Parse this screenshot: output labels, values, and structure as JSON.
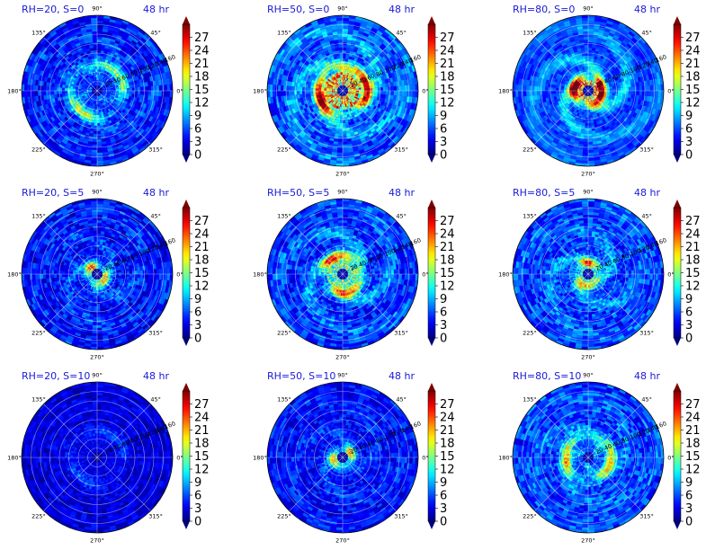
{
  "chart_data": {
    "type": "polar-heatmap-grid",
    "rows": 3,
    "cols": 3,
    "colormap": "jet",
    "vmin": 0,
    "vmax": 30,
    "colorbar_ticks": [
      "0",
      "3",
      "6",
      "9",
      "12",
      "15",
      "18",
      "21",
      "24",
      "27"
    ],
    "angle_labels": [
      "0°",
      "45°",
      "90°",
      "135°",
      "180°",
      "225°",
      "270°",
      "315°"
    ],
    "radial_labels": [
      "20",
      "40",
      "60",
      "80",
      "100",
      "120",
      "140",
      "160"
    ],
    "panels": [
      {
        "title": "RH=20, S=0",
        "time": "48 hr",
        "ring_radius": 0.35,
        "ring_peak": 12,
        "spiral_strength": 0.45,
        "background": 3.5,
        "noise": 6,
        "core_peak": 6
      },
      {
        "title": "RH=50, S=0",
        "time": "48 hr",
        "ring_radius": 0.32,
        "ring_peak": 22,
        "spiral_strength": 0.6,
        "background": 5,
        "noise": 6,
        "core_peak": 28
      },
      {
        "title": "RH=80, S=0",
        "time": "48 hr",
        "ring_radius": 0.18,
        "ring_peak": 28,
        "spiral_strength": 0.45,
        "background": 5,
        "noise": 4,
        "core_peak": 28
      },
      {
        "title": "RH=20, S=5",
        "time": "48 hr",
        "ring_radius": 0.12,
        "ring_peak": 17,
        "spiral_strength": 0.35,
        "background": 3,
        "noise": 6,
        "core_peak": 14
      },
      {
        "title": "RH=50, S=5",
        "time": "48 hr",
        "ring_radius": 0.25,
        "ring_peak": 18,
        "spiral_strength": 0.6,
        "background": 4,
        "noise": 6,
        "core_peak": 20
      },
      {
        "title": "RH=80, S=5",
        "time": "48 hr",
        "ring_radius": 0.15,
        "ring_peak": 16,
        "spiral_strength": 0.5,
        "background": 4.5,
        "noise": 6,
        "core_peak": 18
      },
      {
        "title": "RH=20, S=10",
        "time": "48 hr",
        "ring_radius": 0.35,
        "ring_peak": 4,
        "spiral_strength": 0.2,
        "background": 2,
        "noise": 4,
        "core_peak": 3
      },
      {
        "title": "RH=50, S=10",
        "time": "48 hr",
        "ring_radius": 0.12,
        "ring_peak": 16,
        "spiral_strength": 0.3,
        "background": 3,
        "noise": 5,
        "core_peak": 12
      },
      {
        "title": "RH=80, S=10",
        "time": "48 hr",
        "ring_radius": 0.3,
        "ring_peak": 14,
        "spiral_strength": 0.5,
        "background": 4.5,
        "noise": 6,
        "core_peak": 6
      }
    ]
  }
}
